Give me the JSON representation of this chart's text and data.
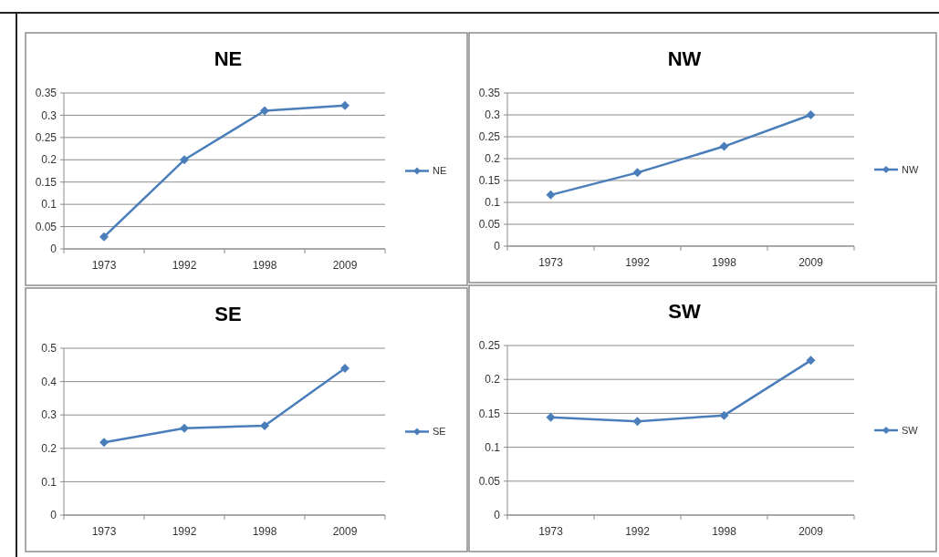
{
  "chart_data": [
    {
      "type": "line",
      "title": "NE",
      "categories": [
        "1973",
        "1992",
        "1998",
        "2009"
      ],
      "series": [
        {
          "name": "NE",
          "color": "#4a7ebb",
          "values": [
            0.027,
            0.2,
            0.31,
            0.322
          ]
        }
      ],
      "ylim": [
        0,
        0.35
      ],
      "yticks": [
        0,
        0.05,
        0.1,
        0.15,
        0.2,
        0.25,
        0.3,
        0.35
      ],
      "grid": "y",
      "legend": "right",
      "marker": "diamond"
    },
    {
      "type": "line",
      "title": "NW",
      "categories": [
        "1973",
        "1992",
        "1998",
        "2009"
      ],
      "series": [
        {
          "name": "NW",
          "color": "#4a7ebb",
          "values": [
            0.117,
            0.168,
            0.228,
            0.3
          ]
        }
      ],
      "ylim": [
        0,
        0.35
      ],
      "yticks": [
        0,
        0.05,
        0.1,
        0.15,
        0.2,
        0.25,
        0.3,
        0.35
      ],
      "grid": "y",
      "legend": "right",
      "marker": "diamond"
    },
    {
      "type": "line",
      "title": "SE",
      "categories": [
        "1973",
        "1992",
        "1998",
        "2009"
      ],
      "series": [
        {
          "name": "SE",
          "color": "#4a7ebb",
          "values": [
            0.218,
            0.26,
            0.268,
            0.44
          ]
        }
      ],
      "ylim": [
        0,
        0.5
      ],
      "yticks": [
        0,
        0.1,
        0.2,
        0.3,
        0.4,
        0.5
      ],
      "grid": "y",
      "legend": "right",
      "marker": "diamond"
    },
    {
      "type": "line",
      "title": "SW",
      "categories": [
        "1973",
        "1992",
        "1998",
        "2009"
      ],
      "series": [
        {
          "name": "SW",
          "color": "#4a7ebb",
          "values": [
            0.144,
            0.138,
            0.147,
            0.228
          ]
        }
      ],
      "ylim": [
        0,
        0.25
      ],
      "yticks": [
        0,
        0.05,
        0.1,
        0.15,
        0.2,
        0.25
      ],
      "grid": "y",
      "legend": "right",
      "marker": "diamond"
    }
  ]
}
